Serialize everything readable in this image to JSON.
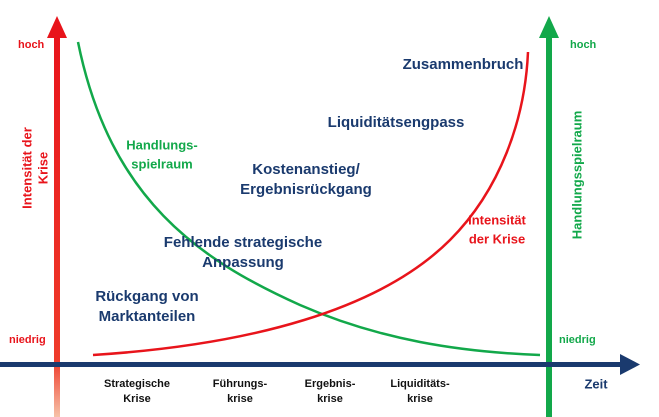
{
  "left_axis": {
    "label": [
      "Intensität der",
      "Krise"
    ],
    "high": "hoch",
    "low": "niedrig"
  },
  "right_axis": {
    "label": "Handlungsspielraum",
    "high": "hoch",
    "low": "niedrig"
  },
  "time_axis": {
    "label": "Zeit",
    "stages": [
      [
        "Strategische",
        "Krise"
      ],
      [
        "Führungs-",
        "krise"
      ],
      [
        "Ergebnis-",
        "krise"
      ],
      [
        "Liquiditäts-",
        "krise"
      ]
    ]
  },
  "curves": {
    "latitude": [
      "Handlungs-",
      "spielraum"
    ],
    "intensity": [
      "Intensität",
      "der Krise"
    ]
  },
  "phases": [
    [
      "Zusammenbruch"
    ],
    [
      "Liquiditätsengpass"
    ],
    [
      "Kostenanstieg/",
      "Ergebnisrückgang"
    ],
    [
      "Fehlende strategische",
      "Anpassung"
    ],
    [
      "Rückgang von",
      "Marktanteilen"
    ]
  ]
}
